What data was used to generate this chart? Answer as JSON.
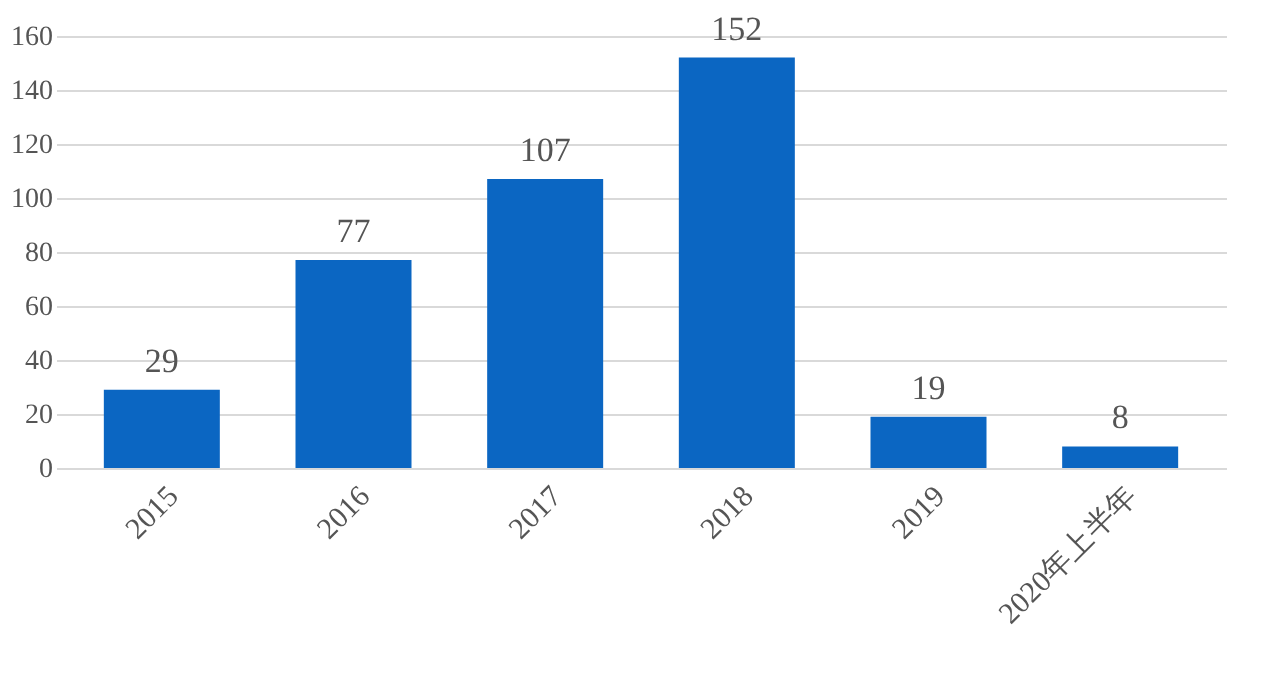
{
  "chart_data": {
    "type": "bar",
    "categories": [
      "2015",
      "2016",
      "2017",
      "2018",
      "2019",
      "2020年上半年"
    ],
    "values": [
      29,
      77,
      107,
      152,
      19,
      8
    ],
    "color": "#0b66c2",
    "ylim": [
      0,
      160
    ],
    "yticks": [
      0,
      20,
      40,
      60,
      80,
      100,
      120,
      140,
      160
    ],
    "grid": "y",
    "data_labels": true
  }
}
